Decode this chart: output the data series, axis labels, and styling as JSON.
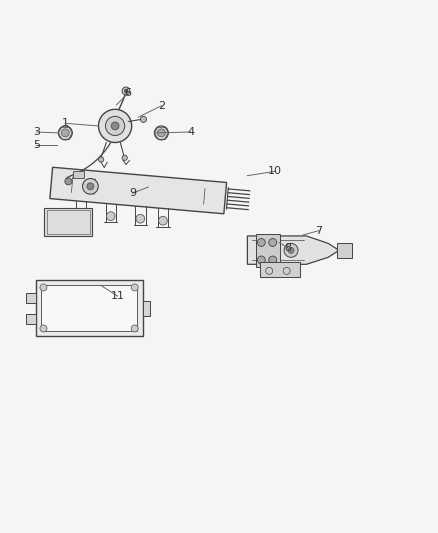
{
  "bg_color": "#f5f5f5",
  "line_color": "#444444",
  "text_color": "#333333",
  "fig_width": 4.38,
  "fig_height": 5.33,
  "dpi": 100,
  "callout_lines": [
    {
      "num": "6",
      "from": [
        0.285,
        0.895
      ],
      "to": [
        0.245,
        0.862
      ]
    },
    {
      "num": "2",
      "from": [
        0.355,
        0.865
      ],
      "to": [
        0.285,
        0.842
      ]
    },
    {
      "num": "1",
      "from": [
        0.155,
        0.825
      ],
      "to": [
        0.215,
        0.825
      ]
    },
    {
      "num": "3",
      "from": [
        0.09,
        0.806
      ],
      "to": [
        0.145,
        0.806
      ]
    },
    {
      "num": "4",
      "from": [
        0.425,
        0.806
      ],
      "to": [
        0.36,
        0.806
      ]
    },
    {
      "num": "5",
      "from": [
        0.09,
        0.778
      ],
      "to": [
        0.155,
        0.778
      ]
    },
    {
      "num": "9",
      "from": [
        0.31,
        0.67
      ],
      "to": [
        0.345,
        0.69
      ]
    },
    {
      "num": "10",
      "from": [
        0.62,
        0.715
      ],
      "to": [
        0.52,
        0.705
      ]
    },
    {
      "num": "7",
      "from": [
        0.72,
        0.582
      ],
      "to": [
        0.685,
        0.572
      ]
    },
    {
      "num": "8",
      "from": [
        0.655,
        0.542
      ],
      "to": [
        0.63,
        0.555
      ]
    },
    {
      "num": "11",
      "from": [
        0.265,
        0.425
      ],
      "to": [
        0.235,
        0.455
      ]
    }
  ]
}
